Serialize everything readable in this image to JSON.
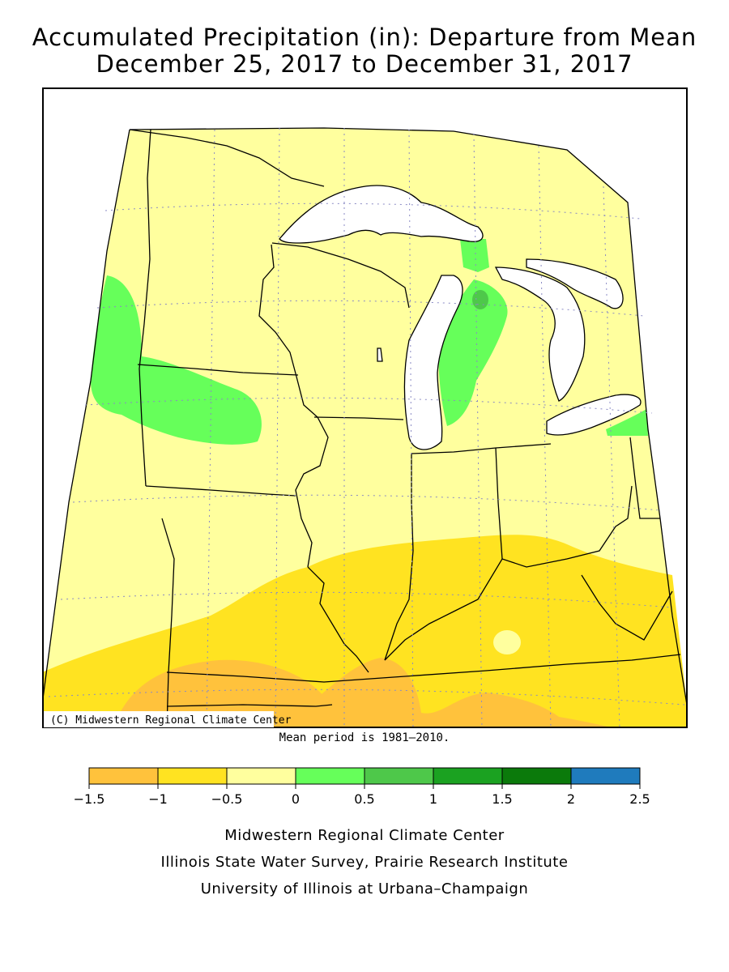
{
  "title": {
    "line1": "Accumulated Precipitation (in): Departure from Mean",
    "line2": "December 25, 2017 to December 31, 2017"
  },
  "map": {
    "copyright": "(C) Midwestern Regional Climate Center",
    "region": "Midwest (MN, WI, MI, IA, MO, IL, IN, OH, KY)"
  },
  "mean_note": "Mean period is 1981–2010.",
  "legend": {
    "ticks": [
      "−1.5",
      "−1",
      "−0.5",
      "0",
      "0.5",
      "1",
      "1.5",
      "2",
      "2.5"
    ],
    "colors": [
      "#ffc23c",
      "#ffe321",
      "#ffff9e",
      "#66ff5a",
      "#4ec84a",
      "#1ba221",
      "#0b7a0b",
      "#1f7bbd"
    ]
  },
  "credits": {
    "line1": "Midwestern Regional Climate Center",
    "line2": "Illinois State Water Survey, Prairie Research Institute",
    "line3": "University of Illinois at Urbana–Champaign"
  },
  "colors": {
    "dry_1": "#ffc23c",
    "dry_05": "#ffe321",
    "dry_0": "#ffff9e",
    "wet_05": "#66ff5a",
    "wet_1": "#4ec84a",
    "lake": "#ffffff"
  }
}
